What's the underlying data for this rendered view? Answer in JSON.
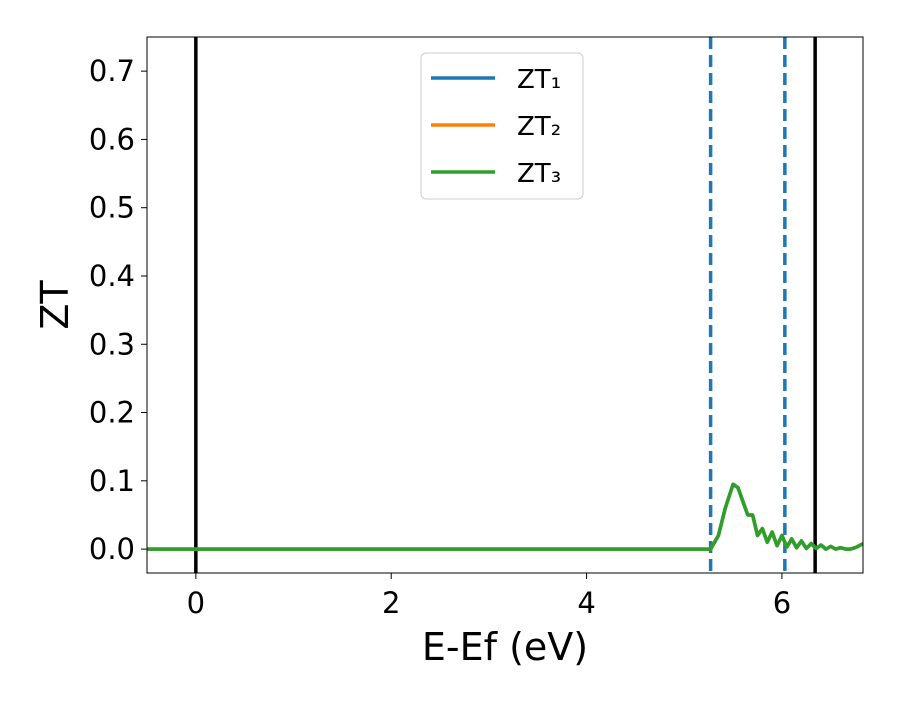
{
  "chart_data": {
    "type": "line",
    "xlabel": "E-Ef (eV)",
    "ylabel": "ZT",
    "x": [
      -0.5,
      5.27,
      5.35,
      5.42,
      5.5,
      5.55,
      5.6,
      5.65,
      5.7,
      5.75,
      5.8,
      5.85,
      5.9,
      5.95,
      6.0,
      6.05,
      6.1,
      6.15,
      6.2,
      6.25,
      6.3,
      6.35,
      6.4,
      6.45,
      6.5,
      6.55,
      6.6,
      6.65,
      6.7,
      6.75,
      6.83
    ],
    "series": [
      {
        "name": "ZT₁",
        "color": "#1f77b4",
        "values": [
          0,
          0,
          0.02,
          0.06,
          0.095,
          0.09,
          0.07,
          0.05,
          0.05,
          0.02,
          0.03,
          0.01,
          0.025,
          0.005,
          0.02,
          0.003,
          0.015,
          0.002,
          0.012,
          0.001,
          0.008,
          0.001,
          0.006,
          0,
          0.004,
          0,
          0.002,
          0,
          0,
          0.002,
          0.008
        ]
      },
      {
        "name": "ZT₂",
        "color": "#ff7f0e",
        "values": [
          0,
          0,
          0.02,
          0.06,
          0.095,
          0.09,
          0.07,
          0.05,
          0.05,
          0.02,
          0.03,
          0.01,
          0.025,
          0.005,
          0.02,
          0.003,
          0.015,
          0.002,
          0.012,
          0.001,
          0.008,
          0.001,
          0.006,
          0,
          0.004,
          0,
          0.002,
          0,
          0,
          0.002,
          0.008
        ]
      },
      {
        "name": "ZT₃",
        "color": "#2ca02c",
        "values": [
          0,
          0,
          0.02,
          0.06,
          0.095,
          0.09,
          0.07,
          0.05,
          0.05,
          0.02,
          0.03,
          0.01,
          0.025,
          0.005,
          0.02,
          0.003,
          0.015,
          0.002,
          0.012,
          0.001,
          0.008,
          0.001,
          0.006,
          0,
          0.004,
          0,
          0.002,
          0,
          0,
          0.002,
          0.008
        ]
      }
    ],
    "vlines": [
      {
        "x": 0,
        "color": "#000000",
        "style": "solid"
      },
      {
        "x": 6.34,
        "color": "#000000",
        "style": "solid"
      },
      {
        "x": 5.27,
        "color": "#1f77b4",
        "style": "dashed"
      },
      {
        "x": 6.03,
        "color": "#1f77b4",
        "style": "dashed"
      }
    ],
    "xlim": [
      -0.5,
      6.83
    ],
    "ylim": [
      -0.035,
      0.75
    ],
    "xticks": [
      0,
      2,
      4,
      6
    ],
    "yticks": [
      {
        "value": 0,
        "label": "0.0"
      },
      0.1,
      0.2,
      0.3,
      0.4,
      0.5,
      0.6,
      0.7
    ],
    "legend": "upper center",
    "grid": false
  }
}
